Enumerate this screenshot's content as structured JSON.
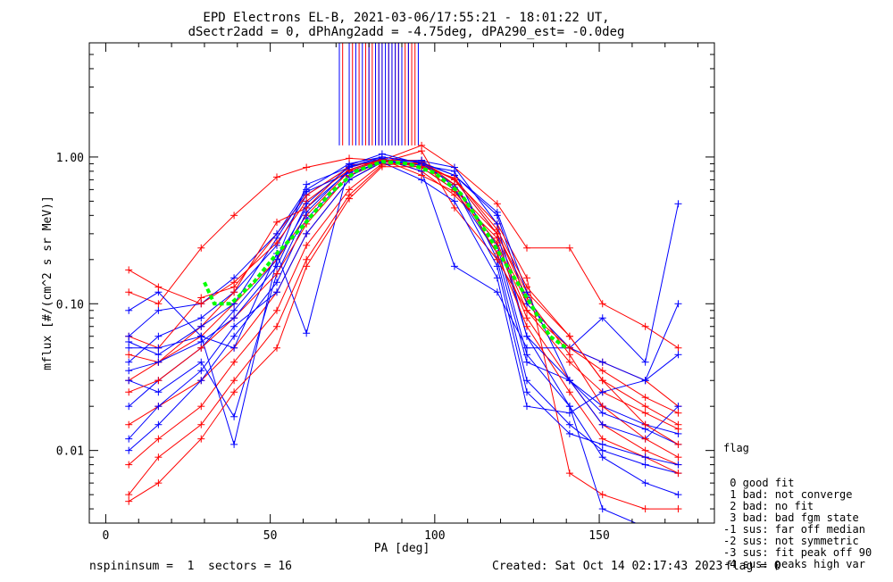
{
  "header": {
    "title1": "EPD Electrons EL-B, 2021-03-06/17:55:21 - 18:01:22 UT,",
    "title2": "dSectr2add = 0, dPhAng2add = -4.75deg, dPA290_est=  -0.0deg"
  },
  "footer": {
    "left": "nspininsum =  1  sectors = 16",
    "created": "Created: Sat Oct 14 02:17:43 2023",
    "flag": "flag = 0"
  },
  "legend": {
    "title": "flag",
    "items": [
      " 0 good fit",
      " 1 bad: not converge",
      " 2 bad: no fit",
      " 3 bad: bad fgm state",
      "-1 sus: far off median",
      "-2 sus: not symmetric",
      "-3 sus: fit peak off 90",
      "-4 sus: peaks high var"
    ]
  },
  "colors": {
    "series_a": "#ff0000",
    "series_b": "#0000ff",
    "fit": "#00ff00",
    "axis": "#000000"
  },
  "chart_data": {
    "type": "line",
    "xlabel": "PA [deg]",
    "ylabel": "mflux [#/(cm^2 s sr MeV)]",
    "xlim": [
      -5,
      185
    ],
    "ylim": [
      0.0032,
      6.0
    ],
    "yscale": "log",
    "xticks": [
      0,
      50,
      100,
      150
    ],
    "xtick_labels": [
      "0",
      "50",
      "100",
      "150"
    ],
    "yticks": [
      0.01,
      0.1,
      1.0
    ],
    "ytick_labels": [
      "0.01",
      "0.10",
      "1.00"
    ],
    "x": [
      7,
      16,
      29,
      39,
      52,
      61,
      74,
      84,
      96,
      106,
      119,
      128,
      141,
      151,
      164,
      174
    ],
    "red_profiles": [
      [
        0.06,
        0.05,
        0.11,
        0.13,
        0.3,
        0.55,
        0.85,
        0.97,
        0.8,
        0.55,
        0.28,
        0.1,
        0.05,
        0.04,
        0.03,
        0.02
      ],
      [
        0.03,
        0.04,
        0.06,
        0.1,
        0.2,
        0.4,
        0.8,
        0.95,
        0.85,
        0.6,
        0.3,
        0.12,
        0.06,
        0.03,
        0.02,
        0.015
      ],
      [
        0.015,
        0.02,
        0.03,
        0.05,
        0.12,
        0.3,
        0.7,
        0.93,
        0.88,
        0.65,
        0.25,
        0.08,
        0.03,
        0.015,
        0.01,
        0.008
      ],
      [
        0.12,
        0.1,
        0.24,
        0.4,
        0.73,
        0.85,
        0.98,
        0.95,
        1.2,
        0.85,
        0.48,
        0.24,
        0.24,
        0.1,
        0.07,
        0.05
      ],
      [
        0.008,
        0.012,
        0.02,
        0.04,
        0.09,
        0.25,
        0.6,
        0.9,
        0.9,
        0.7,
        0.35,
        0.15,
        0.007,
        0.005,
        0.004,
        0.004
      ],
      [
        0.045,
        0.04,
        0.07,
        0.12,
        0.36,
        0.45,
        0.88,
        0.92,
        1.1,
        0.45,
        0.2,
        0.09,
        0.04,
        0.025,
        0.018,
        0.014
      ],
      [
        0.025,
        0.03,
        0.05,
        0.08,
        0.16,
        0.35,
        0.75,
        0.95,
        0.95,
        0.65,
        0.22,
        0.07,
        0.025,
        0.012,
        0.009,
        0.007
      ],
      [
        0.005,
        0.009,
        0.015,
        0.03,
        0.07,
        0.2,
        0.55,
        0.88,
        0.92,
        0.7,
        0.3,
        0.11,
        0.045,
        0.02,
        0.012,
        0.009
      ],
      [
        0.17,
        0.13,
        0.1,
        0.14,
        0.26,
        0.5,
        0.82,
        0.96,
        0.75,
        0.58,
        0.26,
        0.09,
        0.05,
        0.035,
        0.023,
        0.018
      ],
      [
        0.0045,
        0.006,
        0.012,
        0.025,
        0.05,
        0.18,
        0.52,
        0.86,
        0.86,
        0.72,
        0.32,
        0.13,
        0.06,
        0.03,
        0.015,
        0.011
      ]
    ],
    "blue_profiles": [
      [
        0.04,
        0.06,
        0.08,
        0.12,
        0.25,
        0.55,
        0.85,
        0.97,
        0.85,
        0.6,
        0.22,
        0.04,
        0.03,
        0.02,
        0.015,
        0.013
      ],
      [
        0.02,
        0.03,
        0.05,
        0.09,
        0.2,
        0.45,
        0.8,
        0.95,
        0.9,
        0.7,
        0.3,
        0.06,
        0.02,
        0.009,
        0.006,
        0.005
      ],
      [
        0.06,
        0.09,
        0.1,
        0.15,
        0.3,
        0.6,
        0.9,
        1.0,
        0.92,
        0.75,
        0.4,
        0.1,
        0.05,
        0.04,
        0.03,
        0.1
      ],
      [
        0.01,
        0.015,
        0.03,
        0.06,
        0.14,
        0.38,
        0.74,
        0.94,
        0.88,
        0.8,
        0.2,
        0.03,
        0.015,
        0.01,
        0.008,
        0.007
      ],
      [
        0.05,
        0.05,
        0.06,
        0.011,
        0.2,
        0.65,
        0.85,
        0.98,
        0.8,
        0.18,
        0.12,
        0.05,
        0.05,
        0.08,
        0.04,
        0.48
      ],
      [
        0.03,
        0.025,
        0.04,
        0.017,
        0.16,
        0.42,
        0.82,
        0.96,
        0.94,
        0.85,
        0.35,
        0.06,
        0.03,
        0.015,
        0.012,
        0.02
      ],
      [
        0.09,
        0.12,
        0.06,
        0.05,
        0.22,
        0.063,
        0.88,
        1.05,
        0.9,
        0.65,
        0.25,
        0.045,
        0.02,
        0.004,
        0.003,
        0.003
      ],
      [
        0.012,
        0.02,
        0.035,
        0.07,
        0.12,
        0.3,
        0.7,
        0.92,
        0.95,
        0.62,
        0.18,
        0.025,
        0.013,
        0.011,
        0.009,
        0.008
      ],
      [
        0.055,
        0.045,
        0.07,
        0.1,
        0.28,
        0.58,
        0.78,
        0.92,
        0.7,
        0.5,
        0.15,
        0.02,
        0.018,
        0.025,
        0.03,
        0.045
      ],
      [
        0.035,
        0.04,
        0.055,
        0.08,
        0.18,
        0.48,
        0.86,
        1.0,
        0.91,
        0.75,
        0.42,
        0.12,
        0.03,
        0.018,
        0.014,
        0.011
      ]
    ],
    "fit_curve": {
      "x": [
        30,
        33,
        38,
        45,
        52,
        60,
        68,
        76,
        84,
        92,
        100,
        108,
        116,
        122,
        128,
        135,
        140
      ],
      "y": [
        0.14,
        0.1,
        0.1,
        0.14,
        0.22,
        0.34,
        0.56,
        0.8,
        0.93,
        0.9,
        0.78,
        0.56,
        0.3,
        0.18,
        0.11,
        0.06,
        0.05
      ]
    },
    "red_spikes_x": [
      72,
      75,
      77,
      79,
      80,
      81,
      82,
      83,
      84,
      86,
      87,
      88,
      89,
      90,
      91,
      92,
      93,
      94
    ],
    "blue_spikes_x": [
      71,
      74,
      76,
      78,
      80,
      82,
      83,
      84,
      85,
      86,
      87,
      88,
      89,
      90,
      92,
      95
    ]
  }
}
